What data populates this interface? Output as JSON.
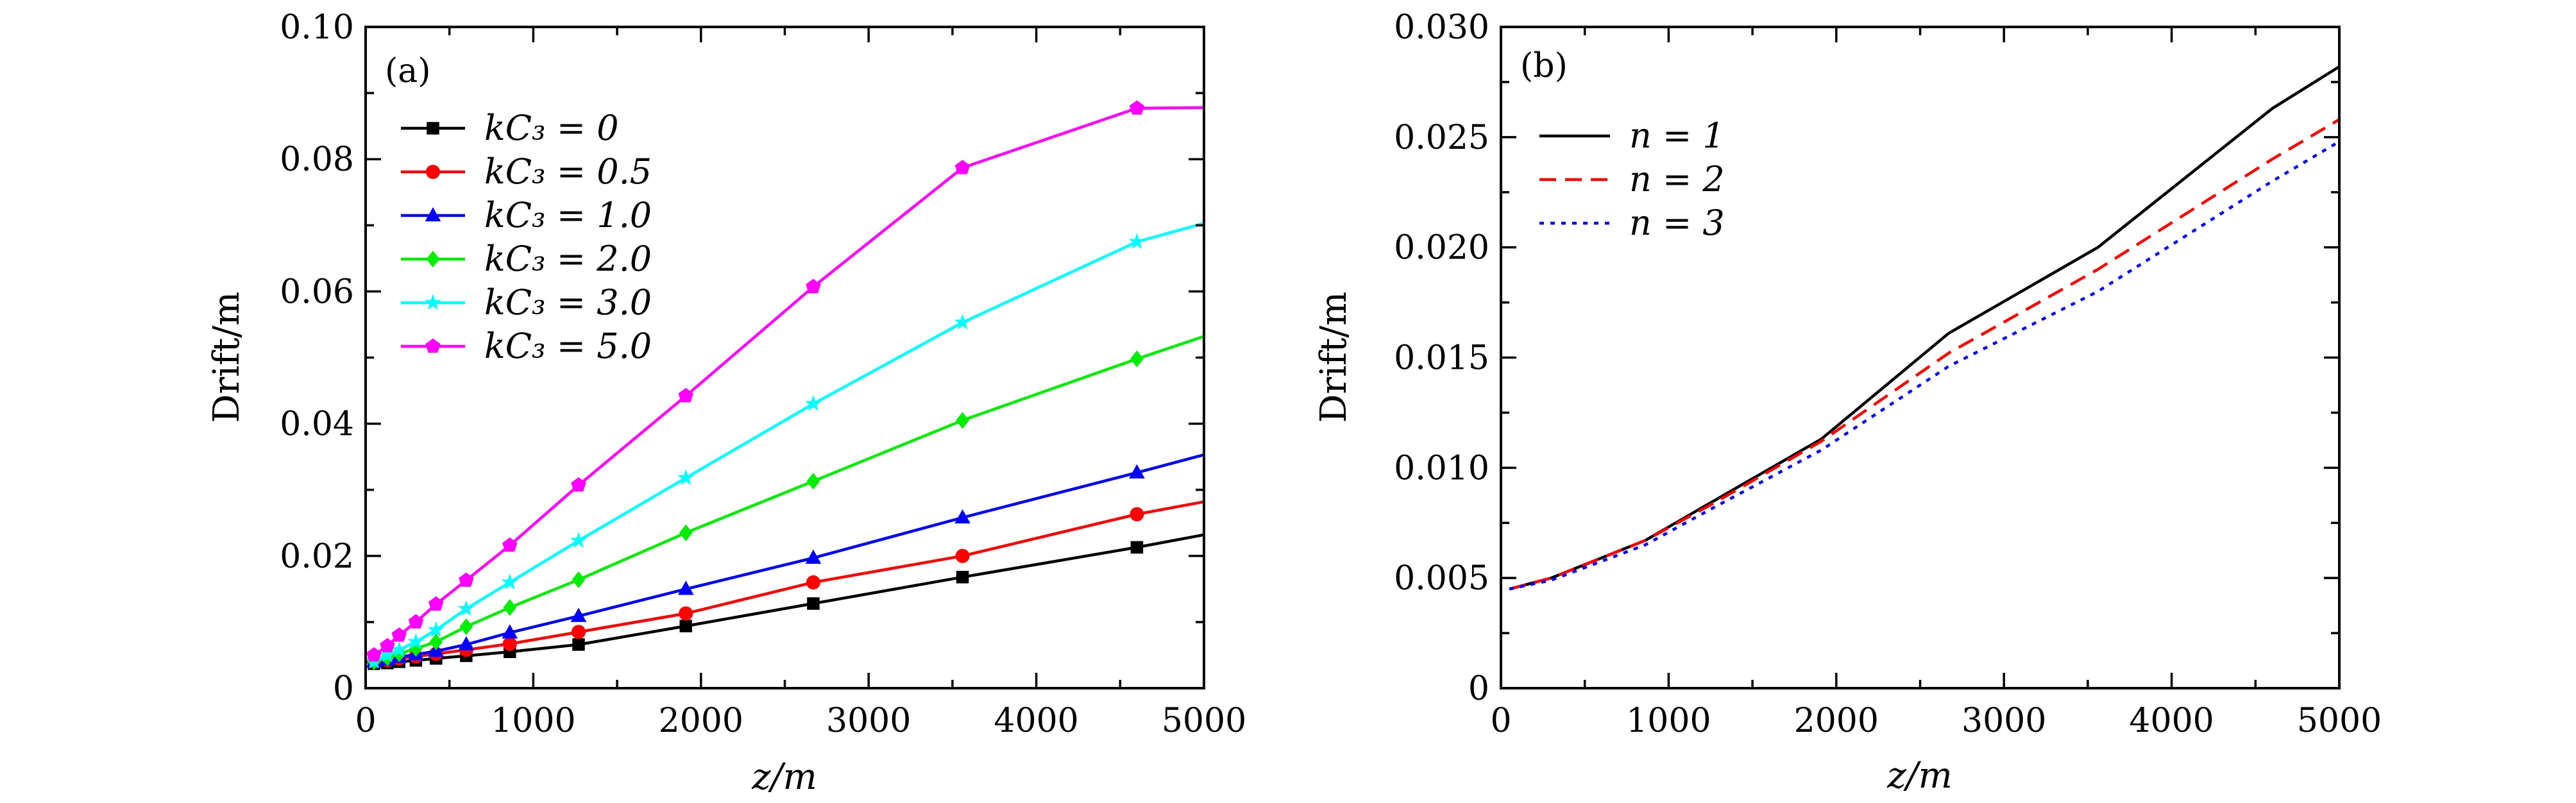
{
  "chart_data": [
    {
      "type": "line",
      "panel_label": "(a)",
      "xlabel": "z/m",
      "ylabel": "Drift/m",
      "xlim": [
        0,
        5000
      ],
      "ylim": [
        0,
        0.1
      ],
      "xticks": [
        0,
        1000,
        2000,
        3000,
        4000,
        5000
      ],
      "xtick_labels": [
        "0",
        "1000",
        "2000",
        "3000",
        "4000",
        "5000"
      ],
      "yticks": [
        0,
        0.02,
        0.04,
        0.06,
        0.08,
        0.1
      ],
      "ytick_labels": [
        "0",
        "0.02",
        "0.04",
        "0.06",
        "0.08",
        "0.10"
      ],
      "legend_position": "top-left",
      "x": [
        50,
        130,
        200,
        300,
        420,
        600,
        860,
        1270,
        1910,
        2670,
        3560,
        4600,
        5000
      ],
      "series": [
        {
          "name": "kC3 = 0",
          "label": "kC₃ = 0",
          "color": "#000000",
          "marker": "square",
          "values": [
            0.0037,
            0.0038,
            0.004,
            0.0042,
            0.0045,
            0.0049,
            0.0055,
            0.0066,
            0.0094,
            0.0128,
            0.0168,
            0.0213,
            0.0232
          ]
        },
        {
          "name": "kC3 = 0.5",
          "label": "kC₃ = 0.5",
          "color": "#ff0000",
          "marker": "circle",
          "values": [
            0.004,
            0.0042,
            0.0045,
            0.0048,
            0.0052,
            0.0058,
            0.0067,
            0.0085,
            0.0113,
            0.016,
            0.02,
            0.0263,
            0.0282
          ]
        },
        {
          "name": "kC3 = 1.0",
          "label": "kC₃ = 1.0",
          "color": "#0000ff",
          "marker": "triangle",
          "values": [
            0.004,
            0.0043,
            0.0047,
            0.0051,
            0.0056,
            0.0066,
            0.0084,
            0.0109,
            0.015,
            0.0197,
            0.0258,
            0.0326,
            0.0353
          ]
        },
        {
          "name": "kC3 = 2.0",
          "label": "kC₃ = 2.0",
          "color": "#00ee00",
          "marker": "diamond",
          "values": [
            0.004,
            0.0046,
            0.0052,
            0.006,
            0.007,
            0.0093,
            0.0122,
            0.0164,
            0.0235,
            0.0313,
            0.0405,
            0.0498,
            0.0532
          ]
        },
        {
          "name": "kC3 = 3.0",
          "label": "kC₃ = 3.0",
          "color": "#00ffff",
          "marker": "star",
          "values": [
            0.004,
            0.005,
            0.0058,
            0.007,
            0.0088,
            0.012,
            0.016,
            0.0223,
            0.0318,
            0.043,
            0.0553,
            0.0675,
            0.0703
          ]
        },
        {
          "name": "kC3 = 5.0",
          "label": "kC₃ = 5.0",
          "color": "#ff00ff",
          "marker": "pentagon",
          "values": [
            0.005,
            0.0064,
            0.008,
            0.01,
            0.0127,
            0.0163,
            0.0216,
            0.0307,
            0.0442,
            0.0607,
            0.0787,
            0.0877,
            0.0878
          ]
        }
      ]
    },
    {
      "type": "line",
      "panel_label": "(b)",
      "xlabel": "z/m",
      "ylabel": "Drift/m",
      "xlim": [
        0,
        5000
      ],
      "ylim": [
        0,
        0.03
      ],
      "xticks": [
        0,
        1000,
        2000,
        3000,
        4000,
        5000
      ],
      "xtick_labels": [
        "0",
        "1000",
        "2000",
        "3000",
        "4000",
        "5000"
      ],
      "yticks": [
        0,
        0.005,
        0.01,
        0.015,
        0.02,
        0.025,
        0.03
      ],
      "ytick_labels": [
        "0",
        "0.005",
        "0.010",
        "0.015",
        "0.020",
        "0.025",
        "0.030"
      ],
      "legend_position": "top-left",
      "x": [
        50,
        300,
        860,
        1270,
        1910,
        2670,
        3560,
        4600,
        5000
      ],
      "series": [
        {
          "name": "n = 1",
          "label": "n = 1",
          "color": "#000000",
          "dash": "solid",
          "values": [
            0.0045,
            0.005,
            0.0067,
            0.0085,
            0.0113,
            0.0161,
            0.02,
            0.0263,
            0.0282
          ]
        },
        {
          "name": "n = 2",
          "label": "n = 2",
          "color": "#ff0000",
          "dash": "dashed",
          "values": [
            0.0045,
            0.005,
            0.0067,
            0.0084,
            0.0112,
            0.0152,
            0.019,
            0.024,
            0.0258
          ]
        },
        {
          "name": "n = 3",
          "label": "n = 3",
          "color": "#0000ff",
          "dash": "dotted",
          "values": [
            0.0045,
            0.0049,
            0.0065,
            0.0082,
            0.0108,
            0.0146,
            0.018,
            0.023,
            0.0248
          ]
        }
      ]
    }
  ]
}
